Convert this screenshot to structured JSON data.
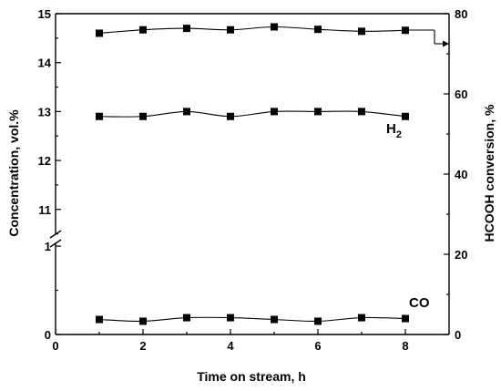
{
  "chart_data": {
    "type": "line",
    "xlabel": "Time on stream, h",
    "ylabel_left": "Concentration, vol.%",
    "ylabel_right": "HCOOH conversion, %",
    "xlim": [
      0,
      9
    ],
    "x_ticks": [
      0,
      2,
      4,
      6,
      8
    ],
    "left_axis": {
      "broken": true,
      "lower_range": [
        0,
        1
      ],
      "upper_range": [
        10.4,
        15
      ],
      "ticks": [
        0,
        1,
        11,
        12,
        13,
        14,
        15
      ]
    },
    "right_axis": {
      "range": [
        0,
        80
      ],
      "ticks": [
        0,
        20,
        40,
        60,
        80
      ]
    },
    "series": [
      {
        "name": "",
        "axis": "right",
        "x": [
          1,
          2,
          3,
          4,
          5,
          6,
          7,
          8
        ],
        "values": [
          14.6,
          14.67,
          14.7,
          14.67,
          14.73,
          14.68,
          14.64,
          14.66
        ]
      },
      {
        "name": "H2",
        "axis": "left",
        "x": [
          1,
          2,
          3,
          4,
          5,
          6,
          7,
          8
        ],
        "values": [
          12.9,
          12.9,
          13.0,
          12.9,
          13.0,
          13.0,
          13.0,
          12.9
        ]
      },
      {
        "name": "CO",
        "axis": "left",
        "x": [
          1,
          2,
          3,
          4,
          5,
          6,
          7,
          8
        ],
        "values": [
          0.17,
          0.15,
          0.19,
          0.19,
          0.17,
          0.15,
          0.19,
          0.18
        ]
      }
    ],
    "series_labels": {
      "h2_main": "H",
      "h2_sub": "2",
      "co": "CO"
    }
  }
}
